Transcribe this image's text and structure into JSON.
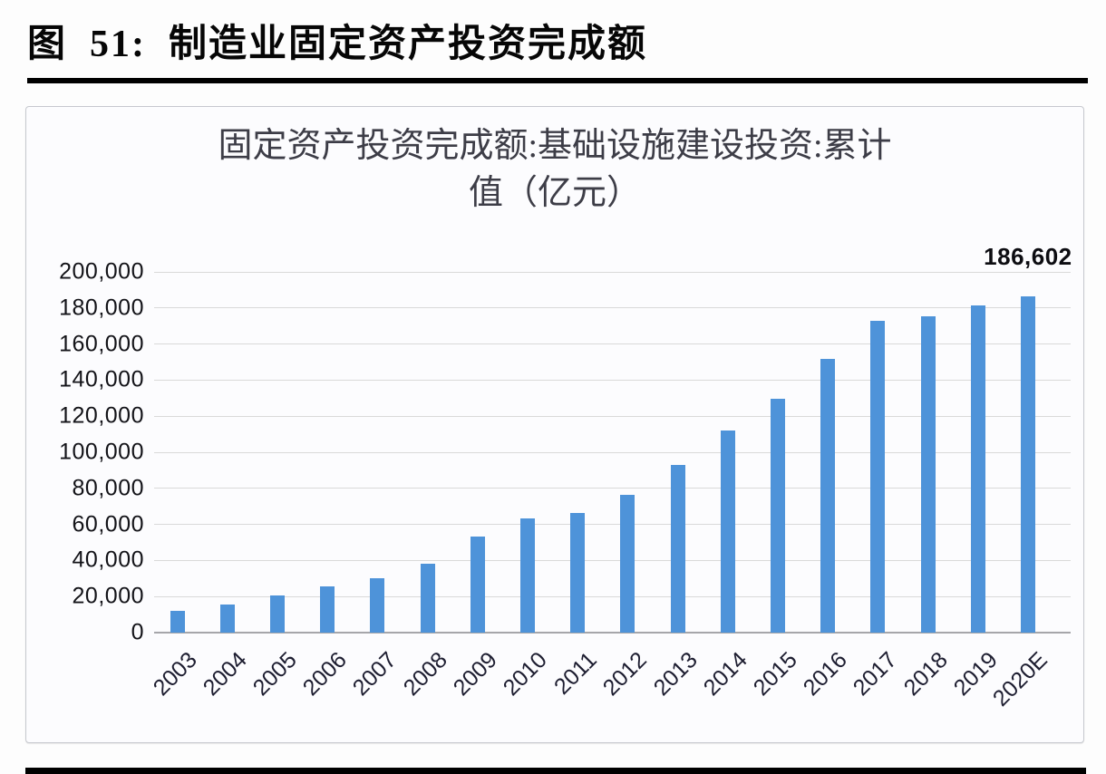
{
  "figure": {
    "caption": "图  51:  制造业固定资产投资完成额"
  },
  "chart": {
    "title_line1": "固定资产投资完成额:基础设施建设投资:累计",
    "title_line2": "值（亿元）",
    "data_label": "186,602"
  },
  "chart_data": {
    "type": "bar",
    "title": "固定资产投资完成额:基础设施建设投资:累计值（亿元）",
    "categories": [
      "2003",
      "2004",
      "2005",
      "2006",
      "2007",
      "2008",
      "2009",
      "2010",
      "2011",
      "2012",
      "2013",
      "2014",
      "2015",
      "2016",
      "2017",
      "2018",
      "2019",
      "2020E"
    ],
    "values": [
      12000,
      15800,
      20700,
      25400,
      30300,
      38000,
      53500,
      63500,
      66200,
      76200,
      93200,
      111900,
      129800,
      151600,
      172700,
      175200,
      181500,
      186602
    ],
    "ylim": [
      0,
      200000
    ],
    "ytick_interval": 20000,
    "ytick_labels": [
      "0",
      "20,000",
      "40,000",
      "60,000",
      "80,000",
      "100,000",
      "120,000",
      "140,000",
      "160,000",
      "180,000",
      "200,000"
    ],
    "grid": true,
    "legend": false,
    "annotation": {
      "text": "186,602",
      "category": "2020E",
      "value": 186602
    },
    "bar_color": "#4E93D9"
  },
  "colors": {
    "bar": "#4E93D9",
    "gridline": "#D9D9D9",
    "axis_line": "#A6A6AA",
    "caption_text": "#060606",
    "chart_title_text": "#3D3D47",
    "tick_text": "#1D1D30",
    "rule": "#000000",
    "card_border": "#C6C8CE",
    "card_background": "#FCFCFE"
  }
}
